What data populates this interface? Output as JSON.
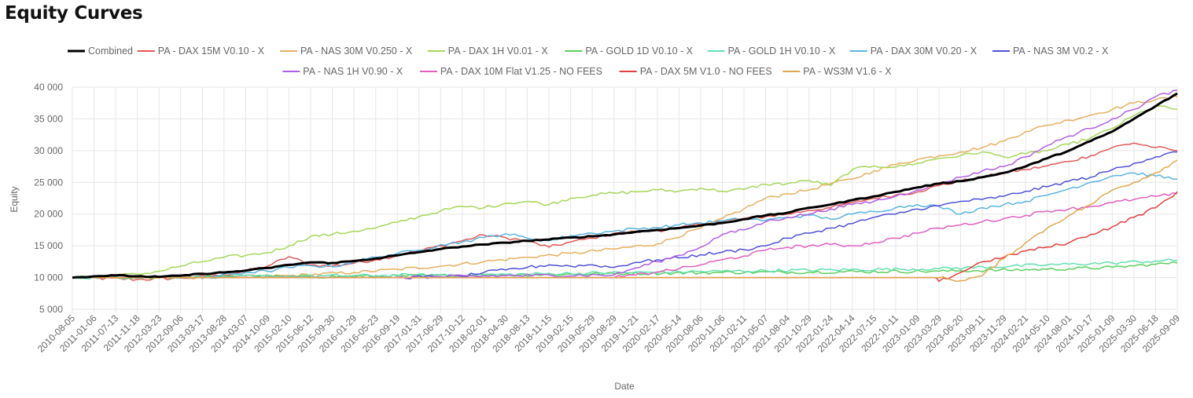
{
  "page": {
    "title": "Equity Curves"
  },
  "chart_data": {
    "type": "line",
    "title": "Equity Curves",
    "xlabel": "Date",
    "ylabel": "Equity",
    "ylim": [
      5000,
      40000
    ],
    "yticks": [
      5000,
      10000,
      15000,
      20000,
      25000,
      30000,
      35000,
      40000
    ],
    "ytick_labels": [
      "5 000",
      "10 000",
      "15 000",
      "20 000",
      "25 000",
      "30 000",
      "35 000",
      "40 000"
    ],
    "grid": true,
    "legend_position": "top",
    "x_tick_labels": [
      "2010-08-05",
      "2011-01-06",
      "2011-07-13",
      "2011-11-18",
      "2012-03-23",
      "2012-09-06",
      "2013-03-17",
      "2013-08-28",
      "2014-03-07",
      "2014-10-09",
      "2015-02-10",
      "2015-06-12",
      "2015-09-30",
      "2016-01-29",
      "2016-05-23",
      "2016-09-19",
      "2017-01-31",
      "2017-06-29",
      "2017-10-12",
      "2018-02-01",
      "2018-04-30",
      "2018-08-13",
      "2018-11-15",
      "2019-02-15",
      "2019-05-29",
      "2019-08-29",
      "2019-11-21",
      "2020-02-17",
      "2020-05-14",
      "2020-08-06",
      "2020-11-06",
      "2021-02-11",
      "2021-05-07",
      "2021-08-04",
      "2021-10-29",
      "2022-01-24",
      "2022-04-14",
      "2022-07-15",
      "2022-10-11",
      "2023-01-09",
      "2023-03-29",
      "2023-06-20",
      "2023-09-11",
      "2023-11-29",
      "2024-02-21",
      "2024-05-10",
      "2024-08-01",
      "2024-10-17",
      "2025-01-09",
      "2025-03-30",
      "2025-06-18",
      "2025-09-09"
    ],
    "series": [
      {
        "name": "Combined",
        "color": "#000000",
        "width": 3,
        "x": [
          0,
          1,
          2,
          3,
          4,
          5,
          6,
          7,
          8,
          9,
          10,
          11,
          12,
          13,
          14,
          15,
          16,
          17,
          18,
          19,
          20,
          21,
          22,
          23,
          24,
          25,
          26,
          27,
          28,
          29,
          30,
          31,
          32,
          33,
          34,
          35,
          36,
          37,
          38,
          39,
          40,
          41,
          42,
          43,
          44,
          45,
          46,
          47,
          48,
          49,
          50,
          51
        ],
        "values": [
          10000,
          10200,
          10350,
          10200,
          10100,
          10300,
          10600,
          10800,
          11100,
          11500,
          12000,
          12400,
          12300,
          12600,
          13000,
          13500,
          14000,
          14500,
          14900,
          15200,
          15500,
          15800,
          16000,
          16300,
          16500,
          16800,
          17200,
          17500,
          17800,
          18200,
          18600,
          19200,
          19800,
          20200,
          21000,
          21500,
          22200,
          22800,
          23500,
          24200,
          24800,
          25200,
          25800,
          26500,
          27500,
          28800,
          30000,
          31500,
          33000,
          35000,
          37000,
          39000
        ]
      },
      {
        "name": "PA - DAX 15M V0.10 - X",
        "color": "#e05a5a",
        "width": 1.5,
        "x": [
          0,
          3,
          5,
          7,
          8,
          9,
          10,
          11,
          12,
          14,
          16,
          17,
          18,
          19,
          20,
          21,
          22,
          23,
          24,
          25,
          26,
          27,
          28,
          29,
          30,
          31,
          32,
          33,
          34,
          35,
          36,
          37,
          38,
          39,
          40,
          41,
          42,
          43,
          44,
          45,
          46,
          47,
          48,
          49,
          50,
          51
        ],
        "values": [
          10000,
          9700,
          9900,
          10400,
          11000,
          11800,
          13300,
          12000,
          11800,
          12800,
          14200,
          15000,
          15800,
          16700,
          16300,
          15700,
          14800,
          15600,
          16200,
          17000,
          17200,
          17400,
          17800,
          18400,
          18900,
          19300,
          19600,
          20000,
          20600,
          21000,
          21800,
          22500,
          23000,
          23500,
          24500,
          25200,
          25800,
          26500,
          27000,
          27600,
          28300,
          29200,
          30500,
          31200,
          30500,
          30000
        ]
      },
      {
        "name": "PA - NAS 30M V0.250 - X",
        "color": "#e6b060",
        "width": 1.5,
        "x": [
          0,
          5,
          10,
          13,
          15,
          17,
          19,
          21,
          23,
          25,
          27,
          29,
          30,
          31,
          32,
          33,
          34,
          35,
          36,
          37,
          38,
          39,
          40,
          41,
          42,
          43,
          44,
          45,
          46,
          47,
          48,
          49,
          50,
          51
        ],
        "values": [
          10000,
          10000,
          10300,
          10800,
          11300,
          11800,
          12500,
          13200,
          13800,
          14500,
          15300,
          17800,
          19300,
          20800,
          22500,
          23200,
          23800,
          24800,
          25500,
          26800,
          27800,
          28600,
          29200,
          29800,
          30500,
          31500,
          33000,
          34000,
          34800,
          35600,
          36500,
          37500,
          38000,
          38500
        ]
      },
      {
        "name": "PA - DAX 1H V0.01 - X",
        "color": "#a8d65c",
        "width": 1.5,
        "x": [
          0,
          3,
          4,
          5,
          6,
          7,
          8,
          9,
          10,
          11,
          12,
          13,
          14,
          15,
          16,
          17,
          18,
          19,
          20,
          21,
          22,
          23,
          24,
          25,
          26,
          27,
          28,
          29,
          30,
          31,
          32,
          33,
          34,
          35,
          36,
          37,
          38,
          39,
          40,
          41,
          42,
          43,
          44,
          45,
          46,
          47,
          48,
          49,
          50,
          51
        ],
        "values": [
          10000,
          10500,
          11000,
          11800,
          12500,
          13200,
          13500,
          13900,
          15000,
          16500,
          16800,
          17300,
          17800,
          18700,
          19600,
          20500,
          21200,
          21000,
          21700,
          22000,
          21500,
          22500,
          23000,
          23300,
          23500,
          23800,
          23600,
          24100,
          23600,
          23900,
          24700,
          24800,
          25300,
          24500,
          27000,
          27600,
          27400,
          28000,
          28800,
          29200,
          29800,
          29000,
          29500,
          30000,
          31000,
          32000,
          33500,
          35500,
          37000,
          36500
        ]
      },
      {
        "name": "PA - GOLD 1D V0.10 - X",
        "color": "#5dd05d",
        "width": 1.5,
        "x": [
          0,
          10,
          20,
          30,
          40,
          45,
          48,
          50,
          51
        ],
        "values": [
          10000,
          10100,
          10400,
          10800,
          11000,
          11300,
          11600,
          12100,
          12300
        ]
      },
      {
        "name": "PA - GOLD 1H V0.10 - X",
        "color": "#63e0b0",
        "width": 1.5,
        "x": [
          0,
          10,
          20,
          30,
          40,
          45,
          48,
          50,
          51
        ],
        "values": [
          10000,
          10200,
          10500,
          11000,
          11400,
          12000,
          12300,
          12600,
          12700
        ]
      },
      {
        "name": "PA - DAX 30M V0.20 - X",
        "color": "#5ab4e0",
        "width": 1.5,
        "x": [
          0,
          6,
          8,
          9,
          10,
          11,
          12,
          13,
          14,
          15,
          16,
          17,
          18,
          19,
          20,
          21,
          22,
          23,
          24,
          25,
          26,
          27,
          28,
          29,
          30,
          31,
          32,
          33,
          34,
          35,
          36,
          37,
          38,
          39,
          40,
          41,
          42,
          43,
          44,
          45,
          46,
          47,
          48,
          49,
          50,
          51
        ],
        "values": [
          10000,
          10000,
          10800,
          11000,
          11600,
          11900,
          11700,
          12500,
          13200,
          13800,
          14300,
          15200,
          15600,
          16300,
          16900,
          16200,
          15800,
          16600,
          17000,
          17300,
          17700,
          17900,
          18300,
          18600,
          18900,
          19300,
          19000,
          19500,
          19800,
          19200,
          20000,
          20400,
          21000,
          21500,
          21200,
          20000,
          21000,
          21500,
          22000,
          23000,
          24000,
          25000,
          26000,
          26500,
          26000,
          25500
        ]
      },
      {
        "name": "PA - NAS 3M V0.2 - X",
        "color": "#5050d8",
        "width": 1.5,
        "x": [
          0,
          10,
          15,
          18,
          19,
          20,
          21,
          22,
          23,
          24,
          25,
          26,
          27,
          28,
          29,
          30,
          31,
          32,
          33,
          34,
          35,
          36,
          37,
          38,
          39,
          40,
          41,
          42,
          43,
          44,
          45,
          46,
          47,
          48,
          49,
          50,
          51
        ],
        "values": [
          10000,
          10000,
          10000,
          10200,
          10800,
          11200,
          11600,
          12000,
          11800,
          12000,
          11600,
          12400,
          12800,
          13100,
          13600,
          14000,
          14400,
          15000,
          16200,
          17000,
          17800,
          18500,
          19500,
          20000,
          20800,
          21300,
          22000,
          22300,
          22800,
          23600,
          24300,
          25200,
          25800,
          27000,
          28000,
          29000,
          29800
        ]
      },
      {
        "name": "PA - NAS 1H V0.90 - X",
        "color": "#b060e0",
        "width": 1.5,
        "x": [
          0,
          10,
          15,
          20,
          25,
          26,
          27,
          28,
          29,
          30,
          31,
          32,
          33,
          34,
          35,
          36,
          37,
          38,
          39,
          40,
          41,
          42,
          43,
          44,
          45,
          46,
          47,
          48,
          49,
          50,
          51
        ],
        "values": [
          10000,
          10000,
          10000,
          10300,
          10400,
          11500,
          12500,
          13500,
          14800,
          16800,
          17500,
          18800,
          19500,
          20000,
          20800,
          21500,
          22000,
          22800,
          23800,
          24800,
          25800,
          26800,
          27500,
          29000,
          30800,
          32300,
          33500,
          35000,
          36500,
          38500,
          39500
        ]
      },
      {
        "name": "PA - DAX 10M Flat V1.25 - NO FEES",
        "color": "#e060c0",
        "width": 1.5,
        "x": [
          0,
          20,
          25,
          26,
          27,
          28,
          29,
          30,
          31,
          32,
          33,
          34,
          35,
          36,
          37,
          38,
          39,
          40,
          41,
          42,
          43,
          44,
          45,
          46,
          47,
          48,
          49,
          50,
          51
        ],
        "values": [
          10000,
          10000,
          10000,
          10400,
          10900,
          11400,
          12000,
          12800,
          13400,
          14300,
          14800,
          15000,
          15200,
          15000,
          15500,
          16200,
          17000,
          17800,
          18300,
          18800,
          19300,
          19800,
          20500,
          20800,
          21200,
          21800,
          22300,
          22800,
          23200
        ]
      },
      {
        "name": "PA - DAX 5M V1.0 - NO FEES",
        "color": "#e04040",
        "width": 1.5,
        "x": [
          0,
          5,
          10,
          15,
          20,
          25,
          30,
          35,
          39.8,
          40,
          41,
          42,
          43,
          44,
          45,
          46,
          47,
          48,
          49,
          50,
          51
        ],
        "values": [
          10000,
          10000,
          10000,
          10000,
          10000,
          10000,
          10000,
          10000,
          10000,
          9400,
          10800,
          12500,
          13200,
          14200,
          14800,
          15500,
          16800,
          18000,
          19500,
          21000,
          23500
        ]
      },
      {
        "name": "PA - WS3M V1.6 -  X",
        "color": "#e0a850",
        "width": 1.5,
        "x": [
          0,
          20,
          30,
          40,
          41,
          42,
          43,
          44,
          45,
          46,
          47,
          48,
          49,
          50,
          51
        ],
        "values": [
          10000,
          10000,
          10000,
          10000,
          9500,
          10300,
          13000,
          15500,
          17800,
          19800,
          21500,
          23800,
          25000,
          26500,
          28500
        ]
      }
    ]
  }
}
